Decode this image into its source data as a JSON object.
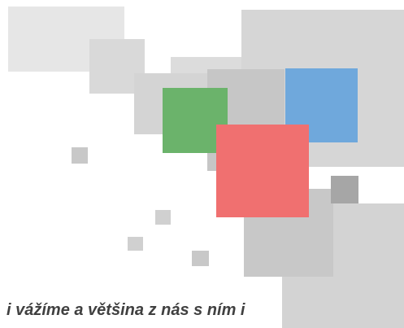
{
  "caption": "i vážíme a většina z nás s ním i"
}
